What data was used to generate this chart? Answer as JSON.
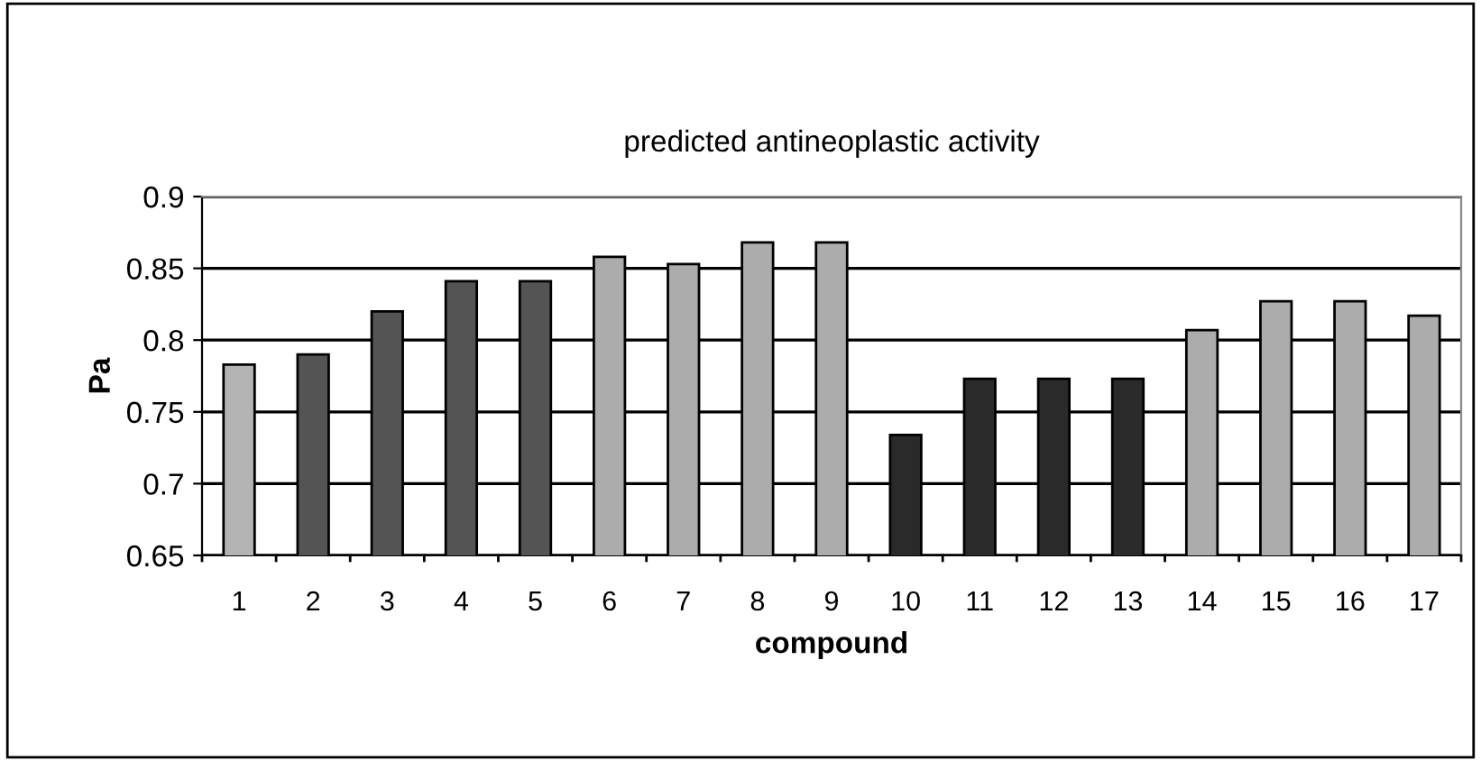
{
  "chart_data": {
    "type": "bar",
    "title": "predicted antineoplastic activity",
    "xlabel": "compound",
    "ylabel": "Pa",
    "categories": [
      "1",
      "2",
      "3",
      "4",
      "5",
      "6",
      "7",
      "8",
      "9",
      "10",
      "11",
      "12",
      "13",
      "14",
      "15",
      "16",
      "17"
    ],
    "values": [
      0.783,
      0.79,
      0.82,
      0.841,
      0.841,
      0.858,
      0.853,
      0.868,
      0.868,
      0.734,
      0.773,
      0.773,
      0.773,
      0.807,
      0.827,
      0.827,
      0.817
    ],
    "colors": [
      "#b4b4b4",
      "#545454",
      "#545454",
      "#545454",
      "#545454",
      "#acacac",
      "#acacac",
      "#acacac",
      "#acacac",
      "#2a2a2a",
      "#2a2a2a",
      "#2a2a2a",
      "#2a2a2a",
      "#acacac",
      "#acacac",
      "#acacac",
      "#acacac"
    ],
    "ylim": [
      0.65,
      0.9
    ],
    "yticks": [
      0.65,
      0.7,
      0.75,
      0.8,
      0.85,
      0.9
    ],
    "grid": "y",
    "legend": false
  }
}
